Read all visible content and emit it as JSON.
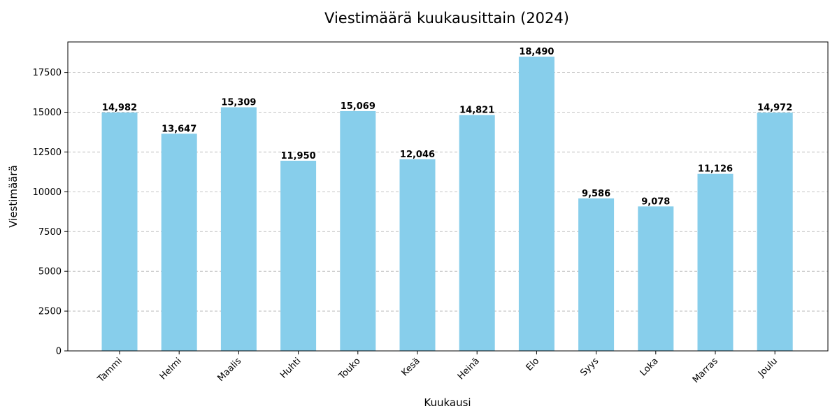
{
  "chart_data": {
    "type": "bar",
    "title": "Viestimäärä kuukausittain (2024)",
    "xlabel": "Kuukausi",
    "ylabel": "Viestimäärä",
    "categories": [
      "Tammi",
      "Helmi",
      "Maalis",
      "Huhti",
      "Touko",
      "Kesä",
      "Heinä",
      "Elo",
      "Syys",
      "Loka",
      "Marras",
      "Joulu"
    ],
    "values": [
      14982,
      13647,
      15309,
      11950,
      15069,
      12046,
      14821,
      18490,
      9586,
      9078,
      11126,
      14972
    ],
    "value_labels": [
      "14,982",
      "13,647",
      "15,309",
      "11,950",
      "15,069",
      "12,046",
      "14,821",
      "18,490",
      "9,586",
      "9,078",
      "11,126",
      "14,972"
    ],
    "ylim": [
      0,
      19415
    ],
    "yticks": [
      0,
      2500,
      5000,
      7500,
      10000,
      12500,
      15000,
      17500
    ],
    "ytick_labels": [
      "0",
      "2500",
      "5000",
      "7500",
      "10000",
      "12500",
      "15000",
      "17500"
    ],
    "grid": "y-dashed",
    "bar_color": "#87CEEB",
    "legend": null
  }
}
